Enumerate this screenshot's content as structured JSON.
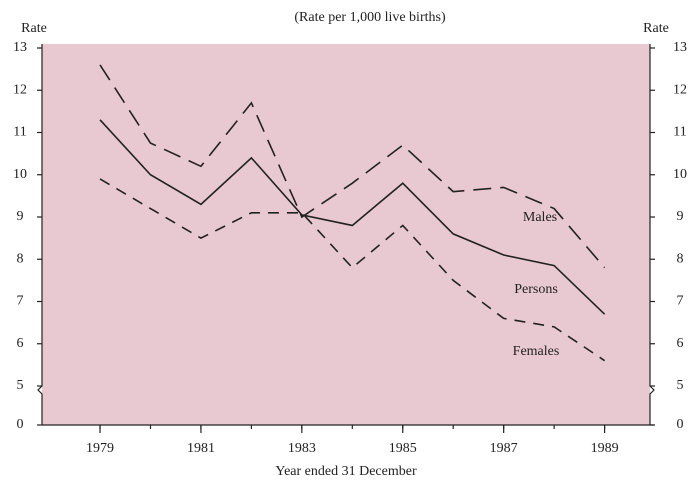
{
  "chart_data": {
    "type": "line",
    "title": "(Rate per 1,000 live births)",
    "y_label": "Rate",
    "y2_label": "Rate",
    "x_label": "Year ended 31 December",
    "x": [
      1979,
      1980,
      1981,
      1982,
      1983,
      1984,
      1985,
      1986,
      1987,
      1988,
      1989
    ],
    "xlim": [
      1977.85,
      1989.9
    ],
    "xticks": [
      1979,
      1981,
      1983,
      1985,
      1987,
      1989
    ],
    "ylim": [
      0,
      13
    ],
    "axis_break": [
      0,
      5
    ],
    "yticks": [
      0,
      5,
      6,
      7,
      8,
      9,
      10,
      11,
      12,
      13
    ],
    "background": "#e9c9d1",
    "series": [
      {
        "name": "Males",
        "color": "#222",
        "dash": "18 9",
        "values": [
          12.6,
          10.75,
          10.2,
          11.7,
          9.0,
          9.8,
          10.7,
          9.6,
          9.7,
          9.2,
          7.8
        ]
      },
      {
        "name": "Persons",
        "color": "#222",
        "dash": "none",
        "values": [
          11.3,
          10.0,
          9.3,
          10.4,
          9.05,
          8.8,
          9.8,
          8.6,
          8.1,
          7.85,
          6.7
        ]
      },
      {
        "name": "Females",
        "color": "#222",
        "dash": "11 8",
        "values": [
          9.9,
          9.2,
          8.5,
          9.1,
          9.1,
          7.8,
          8.8,
          7.5,
          6.6,
          6.4,
          5.6
        ]
      }
    ]
  }
}
